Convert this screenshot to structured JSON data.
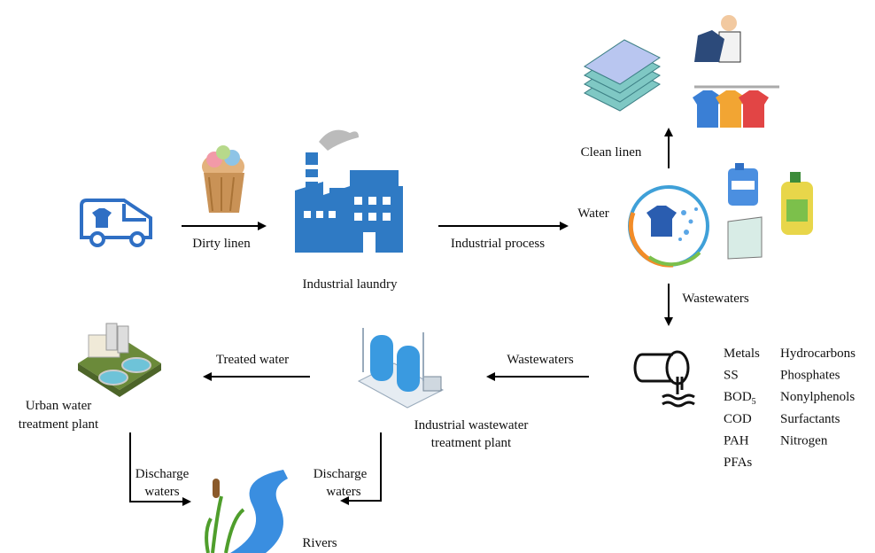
{
  "nodes": {
    "industrial_laundry": "Industrial laundry",
    "urban_plant": [
      "Urban water",
      "treatment plant"
    ],
    "industrial_plant": [
      "Industrial wastewater",
      "treatment plant"
    ],
    "rivers": "Rivers",
    "water": "Water"
  },
  "edges": {
    "dirty_linen": "Dirty linen",
    "industrial_process": "Industrial process",
    "clean_linen": "Clean linen",
    "wastewaters_down": "Wastewaters",
    "wastewaters_left": "Wastewaters",
    "treated_water": "Treated water",
    "discharge_urban": [
      "Discharge",
      "waters"
    ],
    "discharge_industrial": [
      "Discharge",
      "waters"
    ]
  },
  "pollutants": {
    "left": [
      "Metals",
      "SS",
      {
        "text": "BOD",
        "sub": "5"
      },
      "COD",
      "PAH",
      "PFAs"
    ],
    "right": [
      "Hydrocarbons",
      "Phosphates",
      "Nonylphenols",
      "Surfactants",
      "Nitrogen"
    ]
  }
}
